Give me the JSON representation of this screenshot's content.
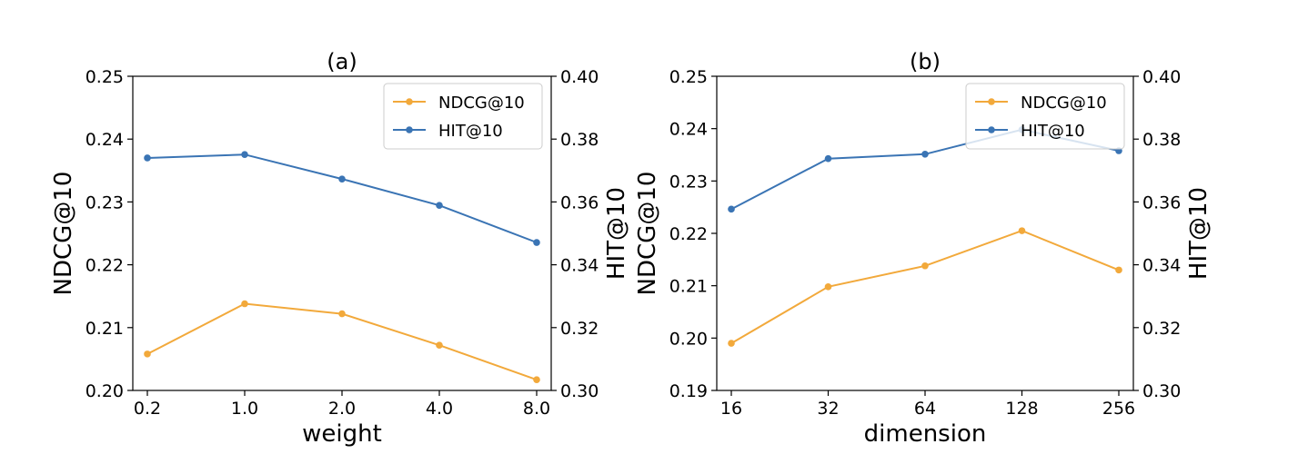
{
  "chart_data": [
    {
      "type": "line",
      "title": "(a)",
      "xlabel": "weight",
      "ylabel_left": "NDCG@10",
      "ylabel_right": "HIT@10",
      "categories": [
        "0.2",
        "1.0",
        "2.0",
        "4.0",
        "8.0"
      ],
      "ylim_left": [
        0.2,
        0.25
      ],
      "yticks_left": [
        "0.20",
        "0.21",
        "0.22",
        "0.23",
        "0.24",
        "0.25"
      ],
      "ylim_right": [
        0.3,
        0.4
      ],
      "yticks_right": [
        "0.30",
        "0.32",
        "0.34",
        "0.36",
        "0.38",
        "0.40"
      ],
      "legend_position": "top-right",
      "series": [
        {
          "name": "NDCG@10",
          "axis": "left",
          "color": "#f2a93b",
          "values": [
            0.2058,
            0.2138,
            0.2122,
            0.2072,
            0.2017
          ]
        },
        {
          "name": "HIT@10",
          "axis": "right",
          "color": "#3a74b4",
          "values": [
            0.374,
            0.3751,
            0.3673,
            0.3589,
            0.3471
          ]
        }
      ]
    },
    {
      "type": "line",
      "title": "(b)",
      "xlabel": "dimension",
      "ylabel_left": "NDCG@10",
      "ylabel_right": "HIT@10",
      "categories": [
        "16",
        "32",
        "64",
        "128",
        "256"
      ],
      "ylim_left": [
        0.19,
        0.25
      ],
      "yticks_left": [
        "0.19",
        "0.20",
        "0.21",
        "0.22",
        "0.23",
        "0.24",
        "0.25"
      ],
      "ylim_right": [
        0.3,
        0.4
      ],
      "yticks_right": [
        "0.30",
        "0.32",
        "0.34",
        "0.36",
        "0.38",
        "0.40"
      ],
      "legend_position": "top-right",
      "series": [
        {
          "name": "NDCG@10",
          "axis": "left",
          "color": "#f2a93b",
          "values": [
            0.199,
            0.2098,
            0.2138,
            0.2205,
            0.213
          ]
        },
        {
          "name": "HIT@10",
          "axis": "right",
          "color": "#3a74b4",
          "values": [
            0.3577,
            0.3738,
            0.3752,
            0.383,
            0.3763
          ]
        }
      ]
    }
  ]
}
